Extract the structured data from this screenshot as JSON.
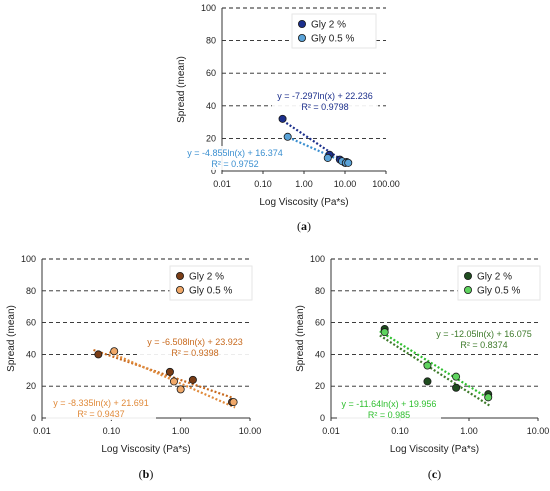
{
  "chart_data": [
    {
      "type": "scatter",
      "panel_label": "a",
      "xlabel": "Log Viscosity (Pa*s)",
      "ylabel": "Spread (mean)",
      "xscale": "log",
      "xlim": [
        0.01,
        100
      ],
      "ylim": [
        0,
        100
      ],
      "x_ticks": [
        "0.01",
        "0.10",
        "1.00",
        "10.00",
        "100.00"
      ],
      "y_ticks": [
        "0",
        "20",
        "40",
        "60",
        "80",
        "100"
      ],
      "grid": "horizontal dashed",
      "legend_position": "top-right",
      "series": [
        {
          "name": "Gly 2 %",
          "color": "#1c2f8c",
          "x": [
            0.3,
            4.2,
            7.5,
            10.0,
            11.0
          ],
          "y": [
            32,
            10,
            7,
            5,
            5.5
          ],
          "trendline": {
            "equation": "y = -7.297ln(x) + 22.236",
            "r2": "R² = 0.9798",
            "color": "#1c2f8c"
          }
        },
        {
          "name": "Gly 0.5 %",
          "color": "#5aa3d8",
          "x": [
            0.4,
            3.8,
            8.5,
            10.5,
            12.0
          ],
          "y": [
            21,
            8,
            6,
            5,
            5
          ],
          "trendline": {
            "equation": "y = -4.855ln(x) + 16.374",
            "r2": "R² = 0.9752",
            "color": "#3a8fd0"
          }
        }
      ]
    },
    {
      "type": "scatter",
      "panel_label": "b",
      "xlabel": "Log Viscosity (Pa*s)",
      "ylabel": "Spread (mean)",
      "xscale": "log",
      "xlim": [
        0.01,
        10
      ],
      "ylim": [
        0,
        100
      ],
      "x_ticks": [
        "0.01",
        "0.10",
        "1.00",
        "10.00"
      ],
      "y_ticks": [
        "0",
        "20",
        "40",
        "60",
        "80",
        "100"
      ],
      "grid": "horizontal dashed",
      "legend_position": "top-right",
      "series": [
        {
          "name": "Gly 2 %",
          "color": "#7a3d16",
          "x": [
            0.065,
            0.7,
            1.5,
            5.5
          ],
          "y": [
            40,
            29,
            24,
            10
          ],
          "trendline": {
            "equation": "y = -6.508ln(x) + 23.923",
            "r2": "R² = 0.9398",
            "color": "#c86a1e"
          }
        },
        {
          "name": "Gly 0.5 %",
          "color": "#f0a868",
          "x": [
            0.11,
            0.8,
            1.0,
            5.8
          ],
          "y": [
            42,
            23,
            18,
            10
          ],
          "trendline": {
            "equation": "y = -8.335ln(x) + 21.691",
            "r2": "R² = 0.9437",
            "color": "#e08a3a"
          }
        }
      ]
    },
    {
      "type": "scatter",
      "panel_label": "c",
      "xlabel": "Log Viscosity (Pa*s)",
      "ylabel": "Spread (mean)",
      "xscale": "log",
      "xlim": [
        0.01,
        10
      ],
      "ylim": [
        0,
        100
      ],
      "x_ticks": [
        "0.01",
        "0.10",
        "1.00",
        "10.00"
      ],
      "y_ticks": [
        "0",
        "20",
        "40",
        "60",
        "80",
        "100"
      ],
      "grid": "horizontal dashed",
      "legend_position": "top-right",
      "series": [
        {
          "name": "Gly 2 %",
          "color": "#1f4d1f",
          "x": [
            0.06,
            0.25,
            0.65,
            1.9
          ],
          "y": [
            56,
            23,
            19,
            15
          ],
          "trendline": {
            "equation": "y = -12.05ln(x) + 16.075",
            "r2": "R² = 0.8374",
            "color": "#3d7a2a"
          }
        },
        {
          "name": "Gly 0.5 %",
          "color": "#5fd35f",
          "x": [
            0.06,
            0.25,
            0.65,
            1.9
          ],
          "y": [
            54,
            33,
            26,
            13
          ],
          "trendline": {
            "equation": "y = -11.64ln(x) + 19.956",
            "r2": "R² = 0.985",
            "color": "#2fbf2f"
          }
        }
      ]
    }
  ]
}
